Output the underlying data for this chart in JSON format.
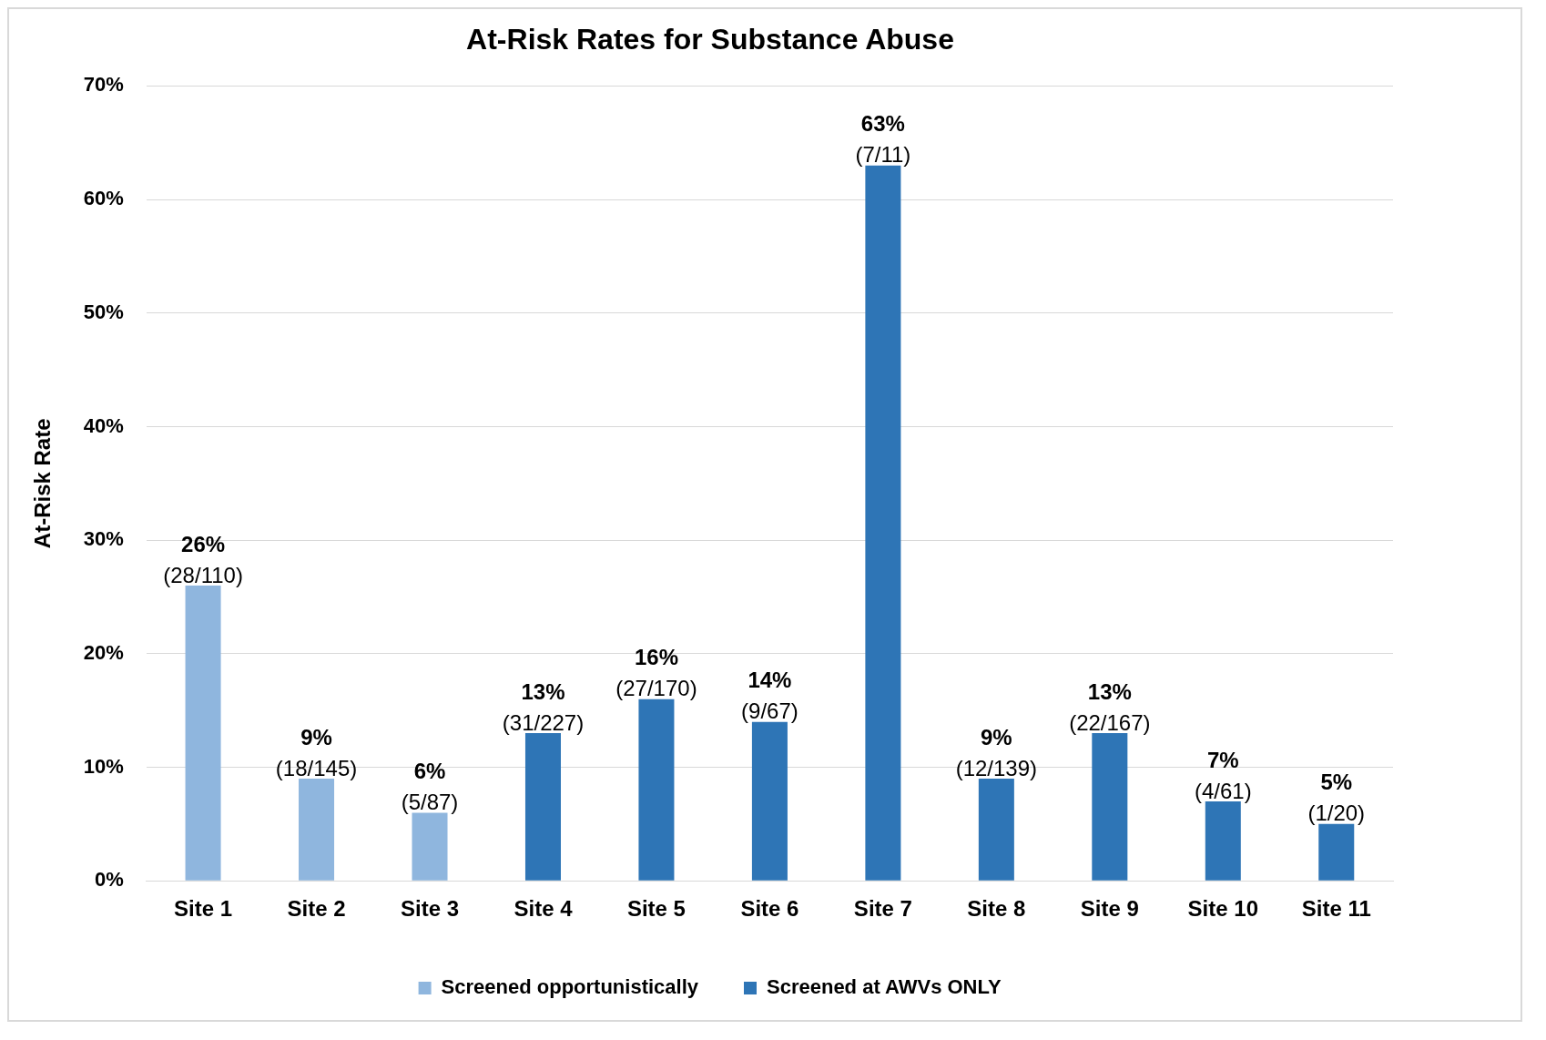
{
  "chart_data": {
    "type": "bar",
    "title": "At-Risk Rates for Substance Abuse",
    "ylabel": "At-Risk Rate",
    "categories": [
      "Site 1",
      "Site 2",
      "Site 3",
      "Site 4",
      "Site 5",
      "Site 6",
      "Site 7",
      "Site 8",
      "Site 9",
      "Site 10",
      "Site 11"
    ],
    "series": [
      {
        "name": "Screened opportunistically",
        "color": "#8fb6de",
        "values": [
          26,
          9,
          6,
          null,
          null,
          null,
          null,
          null,
          null,
          null,
          null
        ],
        "value_labels": [
          "26%\n(28/110)",
          "9%\n(18/145)",
          "6%\n(5/87)",
          null,
          null,
          null,
          null,
          null,
          null,
          null,
          null
        ]
      },
      {
        "name": "Screened at AWVs ONLY",
        "color": "#2e75b6",
        "values": [
          null,
          null,
          null,
          13,
          16,
          14,
          63,
          9,
          13,
          7,
          5
        ],
        "value_labels": [
          null,
          null,
          null,
          "13%\n(31/227)",
          "16%\n(27/170)",
          "14%\n(9/67)",
          "63%\n(7/11)",
          "9%\n(12/139)",
          "13%\n(22/167)",
          "7%\n(4/61)",
          "5%\n(1/20)"
        ]
      }
    ],
    "ylim": [
      0,
      70
    ],
    "yticks": [
      {
        "value": 0,
        "label": "0%"
      },
      {
        "value": 10,
        "label": "10%"
      },
      {
        "value": 20,
        "label": "20%"
      },
      {
        "value": 30,
        "label": "30%"
      },
      {
        "value": 40,
        "label": "40%"
      },
      {
        "value": 50,
        "label": "50%"
      },
      {
        "value": 60,
        "label": "60%"
      },
      {
        "value": 70,
        "label": "70%"
      }
    ],
    "grid": "y",
    "legend": "bottom"
  }
}
